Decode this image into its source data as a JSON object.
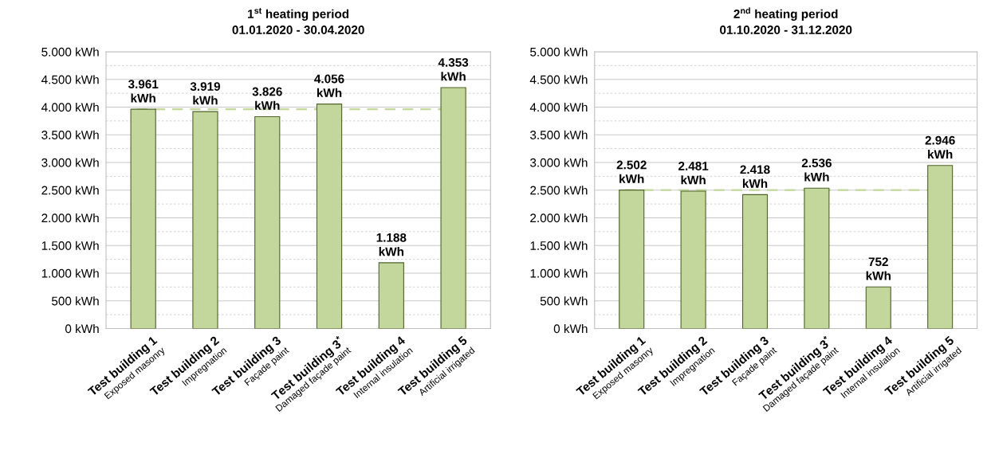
{
  "chart_data": [
    {
      "type": "bar",
      "title": "1$^{st}$ heating period\n01.01.2020 - 30.04.2020",
      "categories": [
        "Test building 1\nExposed masonry",
        "Test building 2\nImpregnation",
        "Test building 3\nFaçade paint",
        "Test building 3$^{*}$\nDamaged façade paint",
        "Test building 4\nInternal insulation",
        "Test building 5\nArtificial irrigated"
      ],
      "values": [
        3961,
        3919,
        3826,
        4056,
        1188,
        4353
      ],
      "color": "#c3d69b",
      "value_labels": [
        "3.961\nkWh",
        "3.919\nkWh",
        "3.826\nkWh",
        "4.056\nkWh",
        "1.188\nkWh",
        "4.353\nkWh"
      ],
      "ylim": [
        0,
        5000
      ],
      "yticks": [
        {
          "value": 0,
          "label": "0 kWh"
        },
        {
          "value": 250,
          "label": null
        },
        {
          "value": 500,
          "label": "500 kWh"
        },
        {
          "value": 750,
          "label": null
        },
        {
          "value": 1000,
          "label": "1.000 kWh"
        },
        {
          "value": 1250,
          "label": null
        },
        {
          "value": 1500,
          "label": "1.500 kWh"
        },
        {
          "value": 1750,
          "label": null
        },
        {
          "value": 2000,
          "label": "2.000 kWh"
        },
        {
          "value": 2250,
          "label": null
        },
        {
          "value": 2500,
          "label": "2.500 kWh"
        },
        {
          "value": 2750,
          "label": null
        },
        {
          "value": 3000,
          "label": "3.000 kWh"
        },
        {
          "value": 3250,
          "label": null
        },
        {
          "value": 3500,
          "label": "3.500 kWh"
        },
        {
          "value": 3750,
          "label": null
        },
        {
          "value": 4000,
          "label": "4.000 kWh"
        },
        {
          "value": 4250,
          "label": null
        },
        {
          "value": 4500,
          "label": "4.500 kWh"
        },
        {
          "value": 4750,
          "label": null
        },
        {
          "value": 5000,
          "label": "5.000 kWh"
        }
      ],
      "ref_lines": [
        {
          "axis": "y",
          "value": 3961,
          "color": "#c4d79b",
          "line_style": "dashed"
        }
      ],
      "grid": "y"
    },
    {
      "type": "bar",
      "title": "2$^{nd}$ heating period\n01.10.2020 - 31.12.2020",
      "categories": [
        "Test building 1\nExposed masonry",
        "Test building 2\nImpregnation",
        "Test building 3\nFaçade paint",
        "Test building 3$^{*}$\nDamaged façade paint",
        "Test building 4\nInternal insulation",
        "Test building 5\nArtificial irrigated"
      ],
      "values": [
        2502,
        2481,
        2418,
        2536,
        752,
        2946
      ],
      "color": "#c3d69b",
      "value_labels": [
        "2.502\nkWh",
        "2.481\nkWh",
        "2.418\nkWh",
        "2.536\nkWh",
        "752\nkWh",
        "2.946\nkWh"
      ],
      "ylim": [
        0,
        5000
      ],
      "yticks": [
        {
          "value": 0,
          "label": "0 kWh"
        },
        {
          "value": 250,
          "label": null
        },
        {
          "value": 500,
          "label": "500 kWh"
        },
        {
          "value": 750,
          "label": null
        },
        {
          "value": 1000,
          "label": "1.000 kWh"
        },
        {
          "value": 1250,
          "label": null
        },
        {
          "value": 1500,
          "label": "1.500 kWh"
        },
        {
          "value": 1750,
          "label": null
        },
        {
          "value": 2000,
          "label": "2.000 kWh"
        },
        {
          "value": 2250,
          "label": null
        },
        {
          "value": 2500,
          "label": "2.500 kWh"
        },
        {
          "value": 2750,
          "label": null
        },
        {
          "value": 3000,
          "label": "3.000 kWh"
        },
        {
          "value": 3250,
          "label": null
        },
        {
          "value": 3500,
          "label": "3.500 kWh"
        },
        {
          "value": 3750,
          "label": null
        },
        {
          "value": 4000,
          "label": "4.000 kWh"
        },
        {
          "value": 4250,
          "label": null
        },
        {
          "value": 4500,
          "label": "4.500 kWh"
        },
        {
          "value": 4750,
          "label": null
        },
        {
          "value": 5000,
          "label": "5.000 kWh"
        }
      ],
      "ref_lines": [
        {
          "axis": "y",
          "value": 2502,
          "color": "#c4d79b",
          "line_style": "dashed"
        }
      ],
      "grid": "y"
    }
  ]
}
